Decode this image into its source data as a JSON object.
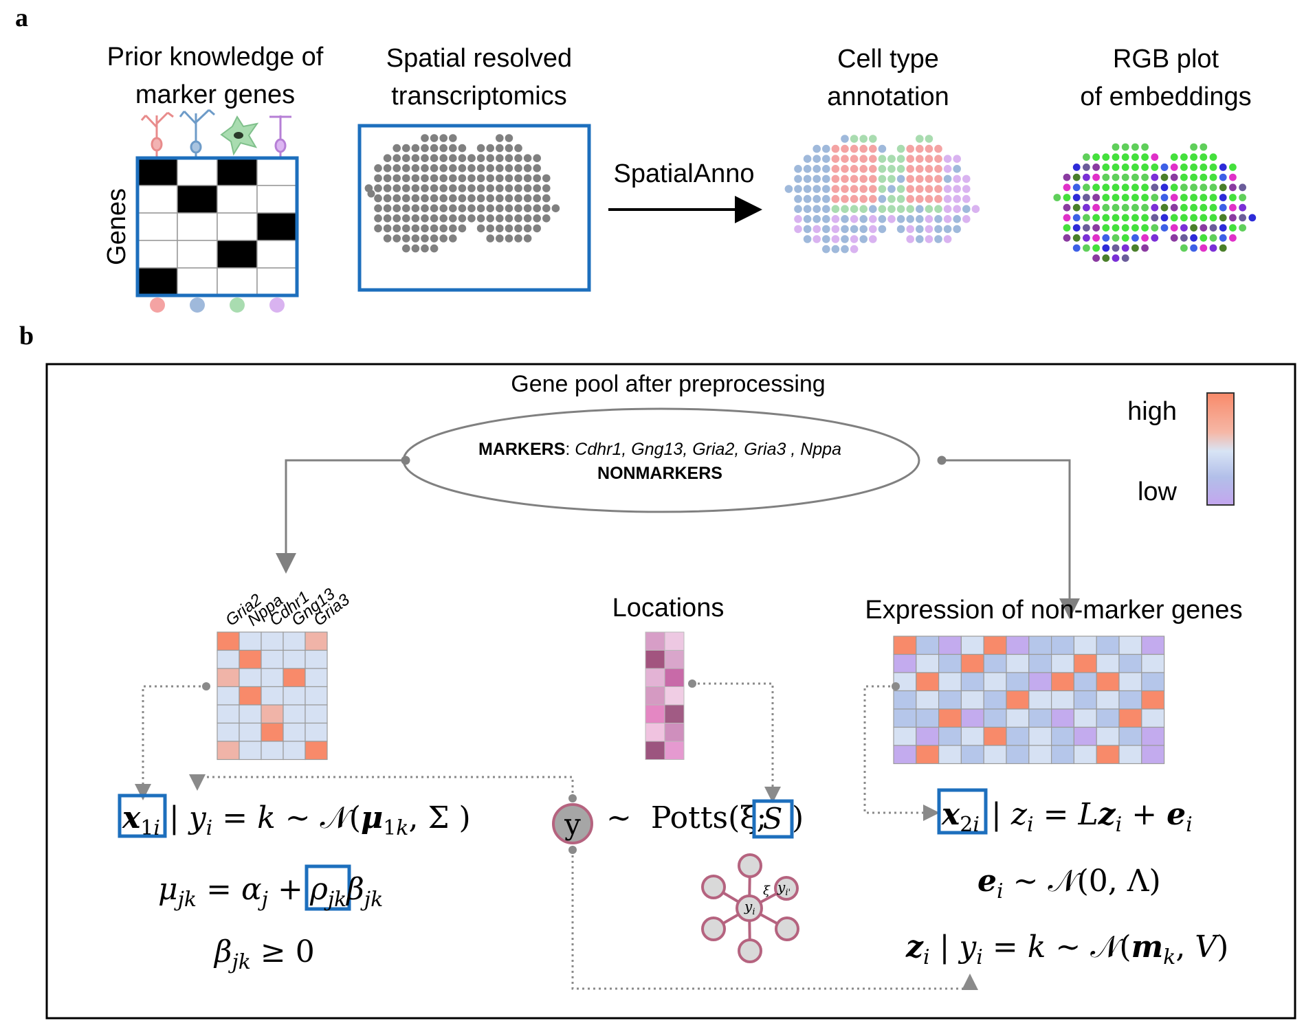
{
  "panel_a": {
    "letter": "a",
    "prior_title": [
      "Prior knowledge of",
      "marker genes"
    ],
    "genes_label": "Genes",
    "srt_title": [
      "Spatial resolved",
      "transcriptomics"
    ],
    "method_label": "SpatialAnno",
    "annotation_title": [
      "Cell type",
      "annotation"
    ],
    "rgb_title": [
      "RGB plot",
      "of embeddings"
    ],
    "marker_matrix": [
      [
        1,
        0,
        1,
        0
      ],
      [
        0,
        1,
        0,
        0
      ],
      [
        0,
        0,
        0,
        1
      ],
      [
        0,
        0,
        1,
        0
      ],
      [
        1,
        0,
        0,
        0
      ]
    ],
    "cell_type_colors": [
      "#f4a3a3",
      "#9fb9db",
      "#a9dcb0",
      "#d9b3f0"
    ],
    "spot_color": "#808080",
    "box_color": "#1d6fbd"
  },
  "panel_b": {
    "letter": "b",
    "pool_title": "Gene pool after preprocessing",
    "markers_label": "MARKERS",
    "markers_genes": "Cdhr1, Gng13, Gria2, Gria3 , Nppa",
    "nonmarkers_label": "NONMARKERS",
    "legend_high": "high",
    "legend_low": "low",
    "marker_columns": [
      "Gria2",
      "Nppa",
      "Cdhr1",
      "Gng13",
      "Gria3"
    ],
    "locations_title": "Locations",
    "nonmarker_title": "Expression of non-marker genes",
    "node_y": "y",
    "potts_text": "~  Potts(ξ;",
    "potts_S": "S",
    "potts_close": ")",
    "graph_center": "y",
    "graph_center_sub": "i",
    "graph_neighbor": "y",
    "graph_neighbor_sub": "i'",
    "graph_xi": "ξ",
    "heat_colors": {
      "high": "#f88a6a",
      "mid_high": "#f0b4a8",
      "neutral": "#d6e1f3",
      "blue": "#b5c6ea",
      "low": "#c3abee"
    }
  }
}
